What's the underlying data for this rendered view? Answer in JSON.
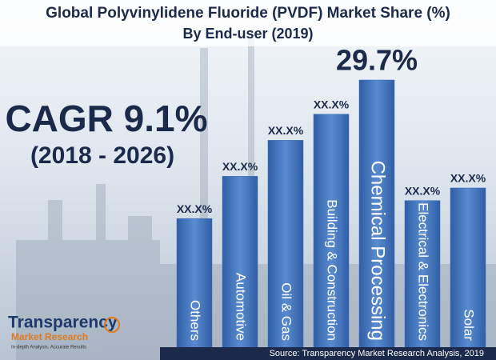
{
  "chart_data": {
    "type": "bar",
    "title": "Global Polyvinylidene Fluoride (PVDF) Market Share (%)",
    "subtitle": "By  End-user (2019)",
    "annotations": [
      "CAGR 9.1%",
      "(2018 - 2026)"
    ],
    "categories": [
      "Others",
      "Automotive",
      "Oil & Gas",
      "Building & Construction",
      "Chemical Processing",
      "Electrical & Electronics",
      "Solar"
    ],
    "values": [
      14.3,
      19.0,
      23.0,
      25.9,
      29.7,
      16.3,
      17.7
    ],
    "value_labels": [
      "XX.X%",
      "XX.X%",
      "XX.X%",
      "XX.X%",
      "29.7%",
      "XX.X%",
      "XX.X%"
    ],
    "color": "#3f6fb5",
    "logo": {
      "name": "Transparency",
      "sub": "Market Research",
      "tagline": "In-depth Analysis. Accurate Results"
    },
    "source": "Source: Transparency Market Research Analysis, 2019"
  }
}
